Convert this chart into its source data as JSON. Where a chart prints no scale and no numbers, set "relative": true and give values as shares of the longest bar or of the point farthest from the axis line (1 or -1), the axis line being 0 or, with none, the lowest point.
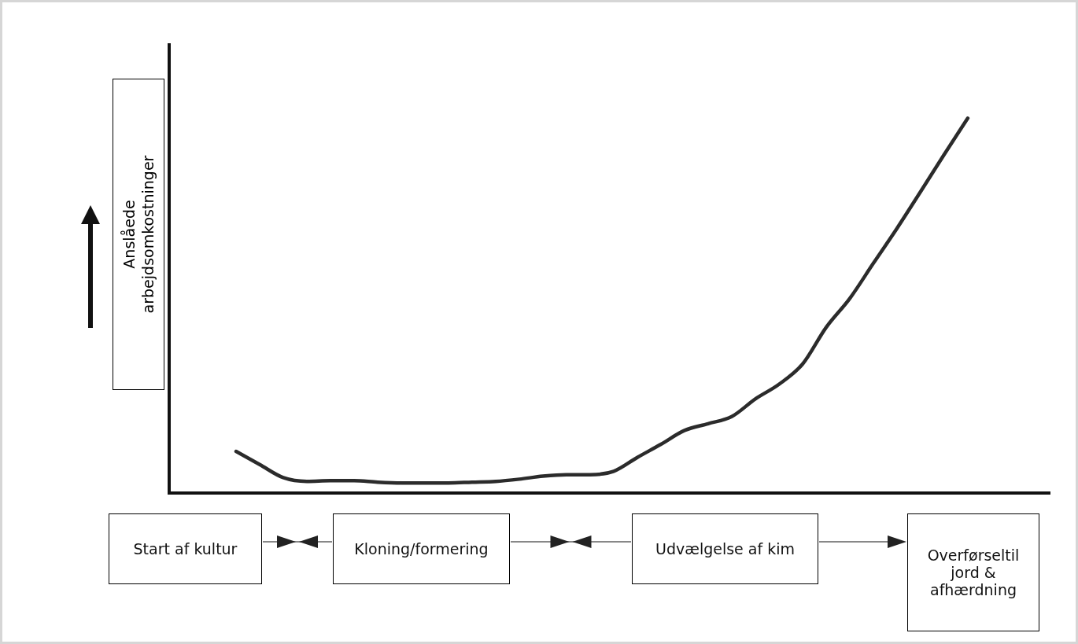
{
  "chart_data": {
    "type": "line",
    "relative": true,
    "categories": [
      null,
      null,
      null,
      null,
      null,
      null,
      null,
      null,
      null,
      null,
      null,
      null,
      null,
      null,
      null,
      null,
      null,
      null,
      null,
      null,
      null,
      null,
      null,
      null,
      null,
      null,
      null,
      null,
      null,
      null,
      null,
      null
    ],
    "values": [
      0.111,
      0.076,
      0.041,
      0.031,
      0.033,
      0.033,
      0.029,
      0.027,
      0.027,
      0.027,
      0.029,
      0.031,
      0.037,
      0.045,
      0.049,
      0.049,
      0.058,
      0.095,
      0.13,
      0.167,
      0.185,
      0.204,
      0.251,
      0.29,
      0.344,
      0.442,
      0.519,
      0.613,
      0.706,
      0.804,
      0.903,
      1.0
    ],
    "color": "#2b2b2b",
    "ylabel": "Anslåede arbejdsomkostninger",
    "annotations": [
      "Start af kultur",
      "Kloning/formering",
      "Udvælgelse af kim",
      "Overførseltil jord & afhærdning"
    ],
    "legend": false,
    "marker": "none",
    "line_style": "solid"
  }
}
